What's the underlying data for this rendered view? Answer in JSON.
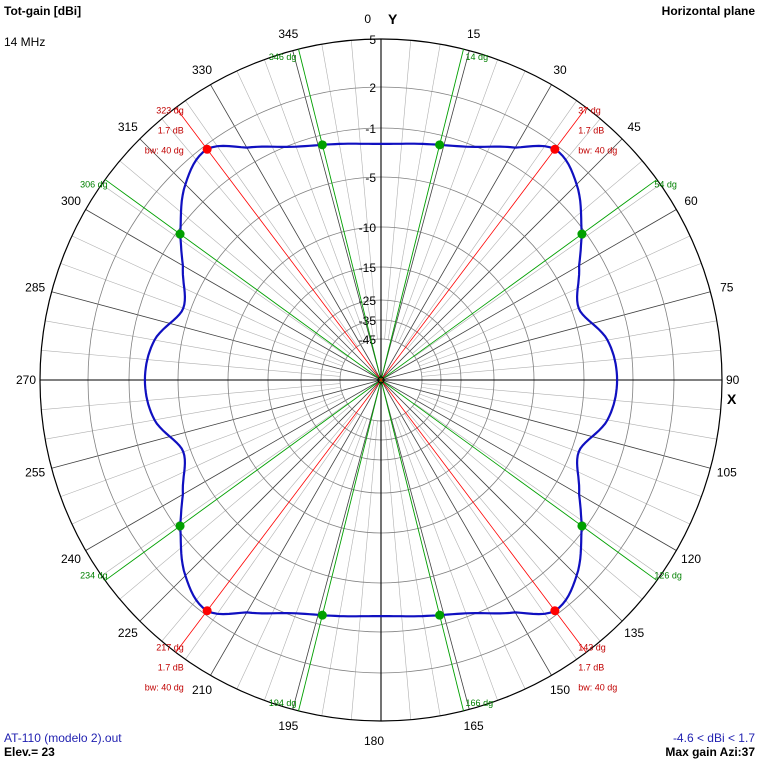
{
  "header": {
    "title": "Tot-gain [dBi]",
    "frequency": "14 MHz",
    "plane": "Horizontal plane"
  },
  "footer": {
    "file": "AT-110 (modelo 2).out",
    "elevation": "Elev.= 23",
    "gain_range": "-4.6 < dBi < 1.7",
    "max_gain": "Max gain Azi:37"
  },
  "colors": {
    "pattern": "#1010c0",
    "max_lobe": "#ff0000",
    "halfpower": "#00a000",
    "grid": "#808080",
    "axis": "#000000"
  },
  "chart_data": {
    "type": "polar-line",
    "axes": {
      "y_label": "Y",
      "x_label": "X"
    },
    "azimuth_labels": [
      "0",
      "15",
      "30",
      "45",
      "60",
      "75",
      "90",
      "105",
      "120",
      "135",
      "150",
      "165",
      "180",
      "195",
      "210",
      "225",
      "240",
      "255",
      "270",
      "285",
      "300",
      "315",
      "330",
      "345"
    ],
    "radial_rings_dbi": [
      5,
      2,
      -1,
      -5,
      -10,
      -15,
      -25,
      -35,
      -45
    ],
    "radial_labels": [
      "5",
      "2",
      "-1",
      "-5",
      "-10",
      "-15",
      "-25",
      "-35",
      "-45"
    ],
    "pattern": {
      "azimuth_deg": [
        0,
        10,
        20,
        30,
        37,
        45,
        54,
        60,
        70,
        80,
        90,
        100,
        110,
        120,
        126,
        135,
        143,
        150,
        160,
        170,
        180,
        190,
        200,
        210,
        217,
        225,
        234,
        240,
        250,
        260,
        270,
        280,
        290,
        300,
        306,
        315,
        323,
        330,
        340,
        350
      ],
      "gain_dbi": [
        -2.3,
        -2.0,
        -1.3,
        0.2,
        1.7,
        0.8,
        -1.3,
        -2.9,
        -4.4,
        -2.8,
        -2.3,
        -2.8,
        -4.4,
        -2.9,
        -1.3,
        0.8,
        1.7,
        0.2,
        -1.3,
        -2.0,
        -2.3,
        -2.0,
        -1.3,
        0.2,
        1.7,
        0.8,
        -1.3,
        -2.9,
        -4.4,
        -2.8,
        -2.3,
        -2.8,
        -4.4,
        -2.9,
        -1.3,
        0.8,
        1.7,
        0.2,
        -1.3,
        -2.0
      ]
    },
    "max_lobes": [
      {
        "azi": 37,
        "lines": [
          "37 dg",
          "1.7 dB",
          "bw: 40 dg"
        ]
      },
      {
        "azi": 143,
        "lines": [
          "143 dg",
          "1.7 dB",
          "bw: 40 dg"
        ]
      },
      {
        "azi": 217,
        "lines": [
          "217 dg",
          "1.7 dB",
          "bw: 40 dg"
        ]
      },
      {
        "azi": 323,
        "lines": [
          "323 dg",
          "1.7 dB",
          "bw: 40 dg"
        ]
      }
    ],
    "halfpower_points": [
      {
        "azi": 14,
        "label": "14 dg",
        "gain_dbi": -1.3
      },
      {
        "azi": 54,
        "label": "54 dg",
        "gain_dbi": -1.3
      },
      {
        "azi": 126,
        "label": "126 dg",
        "gain_dbi": -1.3
      },
      {
        "azi": 166,
        "label": "166 dg",
        "gain_dbi": -1.3
      },
      {
        "azi": 194,
        "label": "194 dg",
        "gain_dbi": -1.3
      },
      {
        "azi": 234,
        "label": "234 dg",
        "gain_dbi": -1.3
      },
      {
        "azi": 306,
        "label": "306 dg",
        "gain_dbi": -1.3
      },
      {
        "azi": 346,
        "label": "346 dg",
        "gain_dbi": -1.3
      }
    ]
  }
}
